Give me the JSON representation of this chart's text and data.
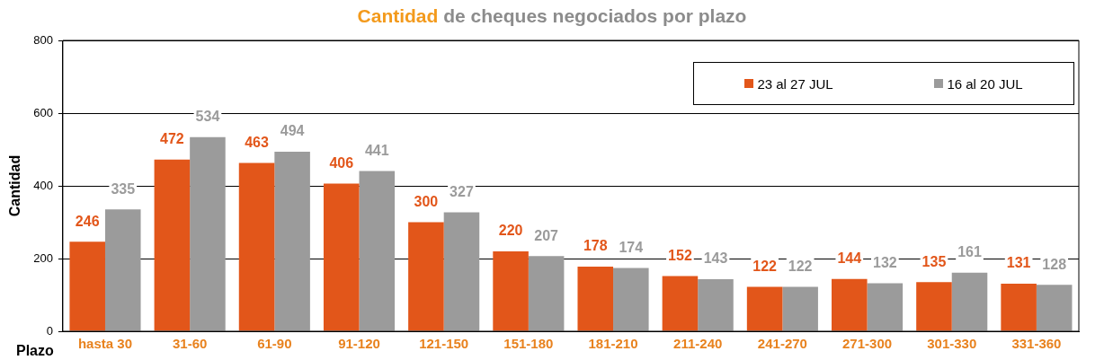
{
  "chart_data": {
    "type": "bar",
    "title": "Cantidad de cheques negociados por plazo",
    "xlabel": "Plazo",
    "ylabel": "Cantidad",
    "categories": [
      "hasta 30",
      "31-60",
      "61-90",
      "91-120",
      "121-150",
      "151-180",
      "181-210",
      "211-240",
      "241-270",
      "271-300",
      "301-330",
      "331-360"
    ],
    "series": [
      {
        "name": "23 al 27 JUL",
        "color": "#e2561a",
        "values": [
          246,
          472,
          463,
          406,
          300,
          220,
          178,
          152,
          122,
          144,
          135,
          131
        ]
      },
      {
        "name": "16 al 20 JUL",
        "color": "#9b9b9b",
        "values": [
          335,
          534,
          494,
          441,
          327,
          207,
          174,
          143,
          122,
          132,
          161,
          128
        ]
      }
    ],
    "ylim": [
      0,
      800
    ],
    "yticks": [
      0,
      200,
      400,
      600,
      800
    ],
    "grid": "y",
    "legend": "top right",
    "data_labels": true
  }
}
